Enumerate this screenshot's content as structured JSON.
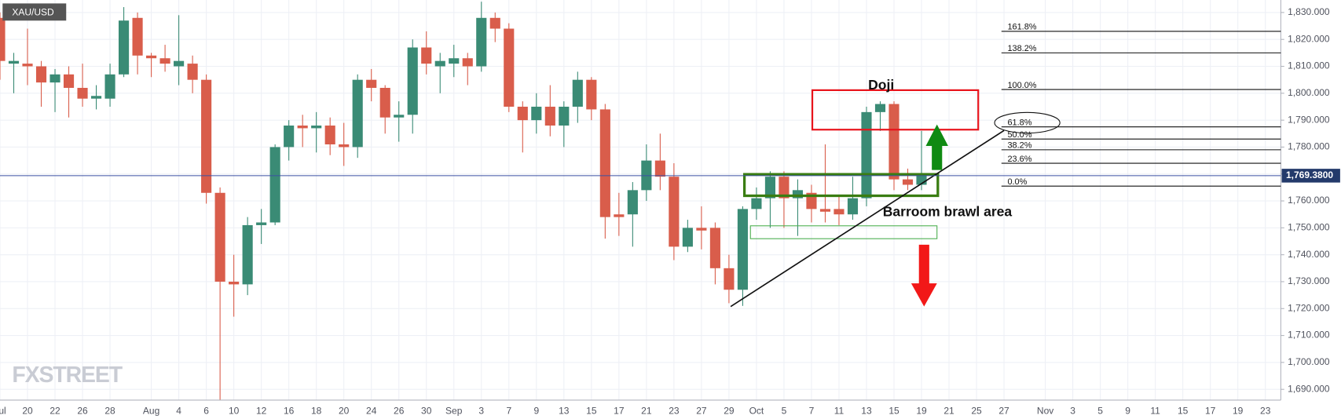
{
  "chart_data": {
    "type": "candlestick",
    "symbol": "XAU/USD",
    "watermark": "FXSTREET",
    "categories": [
      "Jul",
      null,
      "20",
      null,
      "22",
      null,
      "26",
      null,
      "28",
      null,
      null,
      "Aug",
      null,
      "4",
      null,
      "6",
      null,
      "10",
      null,
      "12",
      null,
      "16",
      null,
      "18",
      null,
      "20",
      null,
      "24",
      null,
      "26",
      null,
      "30",
      null,
      "Sep",
      null,
      "3",
      null,
      "7",
      null,
      "9",
      null,
      "13",
      null,
      "15",
      null,
      "17",
      null,
      "21",
      null,
      "23",
      null,
      "27",
      null,
      "29",
      null,
      "Oct",
      null,
      "5",
      null,
      "7",
      null,
      "11",
      null,
      "13",
      null,
      "15",
      null,
      "19",
      null,
      "21",
      null,
      "25",
      null,
      "27",
      null,
      null,
      "Nov",
      null,
      "3",
      null,
      "5",
      null,
      "9",
      null,
      "11",
      null,
      "15",
      null,
      "17",
      null,
      "19",
      null,
      "23"
    ],
    "open": [
      1828,
      1811,
      1811,
      1810,
      1804,
      1807,
      1802,
      1798,
      1798,
      1807,
      1828,
      1814,
      1813,
      1810,
      1811,
      1805,
      1763,
      1730,
      1729,
      1751,
      1752,
      1780,
      1788,
      1787,
      1788,
      1781,
      1780,
      1805,
      1802,
      1791,
      1792,
      1817,
      1810,
      1811,
      1813,
      1810,
      1828,
      1824,
      1795,
      1790,
      1795,
      1788,
      1795,
      1805,
      1794,
      1755,
      1755,
      1764,
      1775,
      1769,
      1743,
      1750,
      1750,
      1735,
      1727,
      1757,
      1761,
      1769,
      1761,
      1763,
      1757,
      1757,
      1755,
      1761,
      1793,
      1796,
      1768,
      1766,
      null,
      null,
      null,
      null,
      null,
      null,
      null,
      null,
      null,
      null,
      null,
      null,
      null,
      null,
      null,
      null,
      null,
      null,
      null,
      null,
      null,
      null,
      null,
      null,
      null
    ],
    "high": [
      1830,
      1815,
      1824,
      1812,
      1809,
      1810,
      1811,
      1803,
      1811,
      1832,
      1830,
      1815,
      1818,
      1829,
      1814,
      1807,
      1765,
      1740,
      1754,
      1757,
      1781,
      1790,
      1792,
      1793,
      1791,
      1789,
      1807,
      1809,
      1803,
      1797,
      1820,
      1823,
      1815,
      1818,
      1815,
      1834,
      1830,
      1826,
      1797,
      1800,
      1803,
      1797,
      1808,
      1806,
      1796,
      1763,
      1767,
      1781,
      1785,
      1774,
      1753,
      1758,
      1752,
      1740,
      1758,
      1765,
      1771,
      1771,
      1768,
      1766,
      1781,
      1762,
      1769,
      1795,
      1797,
      1797,
      1772,
      1786,
      null,
      null,
      null,
      null,
      null,
      null,
      null,
      null,
      null,
      null,
      null,
      null,
      null,
      null,
      null,
      null,
      null,
      null,
      null,
      null,
      null,
      null,
      null,
      null,
      null
    ],
    "low": [
      1805,
      1800,
      1803,
      1795,
      1793,
      1791,
      1795,
      1794,
      1795,
      1806,
      1807,
      1806,
      1808,
      1803,
      1800,
      1759,
      1686,
      1717,
      1725,
      1744,
      1751,
      1775,
      1780,
      1778,
      1777,
      1773,
      1776,
      1797,
      1785,
      1782,
      1785,
      1807,
      1800,
      1806,
      1803,
      1808,
      1819,
      1793,
      1778,
      1785,
      1784,
      1780,
      1789,
      1790,
      1746,
      1747,
      1743,
      1760,
      1764,
      1738,
      1741,
      1742,
      1729,
      1722,
      1721,
      1753,
      1750,
      1750,
      1747,
      1752,
      1752,
      1751,
      1753,
      1758,
      1786,
      1764,
      1764,
      1764,
      null,
      null,
      null,
      null,
      null,
      null,
      null,
      null,
      null,
      null,
      null,
      null,
      null,
      null,
      null,
      null,
      null,
      null,
      null,
      null,
      null,
      null,
      null,
      null,
      null
    ],
    "close": [
      1812,
      1812,
      1810,
      1804,
      1807,
      1802,
      1798,
      1799,
      1807,
      1827,
      1814,
      1813,
      1811,
      1812,
      1805,
      1763,
      1730,
      1729,
      1751,
      1752,
      1780,
      1788,
      1787,
      1788,
      1781,
      1780,
      1805,
      1802,
      1791,
      1792,
      1817,
      1811,
      1812,
      1813,
      1810,
      1828,
      1824,
      1795,
      1790,
      1795,
      1788,
      1795,
      1805,
      1794,
      1754,
      1754,
      1764,
      1775,
      1769,
      1743,
      1750,
      1749,
      1735,
      1727,
      1757,
      1761,
      1769,
      1761,
      1764,
      1757,
      1756,
      1755,
      1761,
      1793,
      1796,
      1768,
      1766,
      1770,
      null,
      null,
      null,
      null,
      null,
      null,
      null,
      null,
      null,
      null,
      null,
      null,
      null,
      null,
      null,
      null,
      null,
      null,
      null,
      null,
      null,
      null,
      null,
      null,
      null
    ],
    "up_color": "#3a8b75",
    "down_color": "#d95d4b",
    "ylim": [
      1686,
      1834
    ],
    "yticks": [
      {
        "value": 1690,
        "label": "1,690.000"
      },
      {
        "value": 1700,
        "label": "1,700.000"
      },
      {
        "value": 1710,
        "label": "1,710.000"
      },
      {
        "value": 1720,
        "label": "1,720.000"
      },
      {
        "value": 1730,
        "label": "1,730.000"
      },
      {
        "value": 1740,
        "label": "1,740.000"
      },
      {
        "value": 1750,
        "label": "1,750.000"
      },
      {
        "value": 1760,
        "label": "1,760.000"
      },
      {
        "value": 1770,
        "label": "1,770.000"
      },
      {
        "value": 1780,
        "label": "1,780.000"
      },
      {
        "value": 1790,
        "label": "1,790.000"
      },
      {
        "value": 1800,
        "label": "1,800.000"
      },
      {
        "value": 1810,
        "label": "1,810.000"
      },
      {
        "value": 1820,
        "label": "1,820.000"
      },
      {
        "value": 1830,
        "label": "1,830.000"
      }
    ],
    "grid": true,
    "last_price": {
      "value": 1769.38,
      "label": "1,769.3800",
      "color": "#3b51a3"
    },
    "fib_levels": [
      {
        "label": "161.8%",
        "value": 1823
      },
      {
        "label": "138.2%",
        "value": 1815
      },
      {
        "label": "100.0%",
        "value": 1801.4
      },
      {
        "label": "61.8%",
        "value": 1787.5
      },
      {
        "label": "50.0%",
        "value": 1783
      },
      {
        "label": "38.2%",
        "value": 1779
      },
      {
        "label": "23.6%",
        "value": 1774
      },
      {
        "label": "0.0%",
        "value": 1765.5
      }
    ],
    "annotations": {
      "doji": "Doji",
      "area": "Barroom brawl area"
    }
  }
}
